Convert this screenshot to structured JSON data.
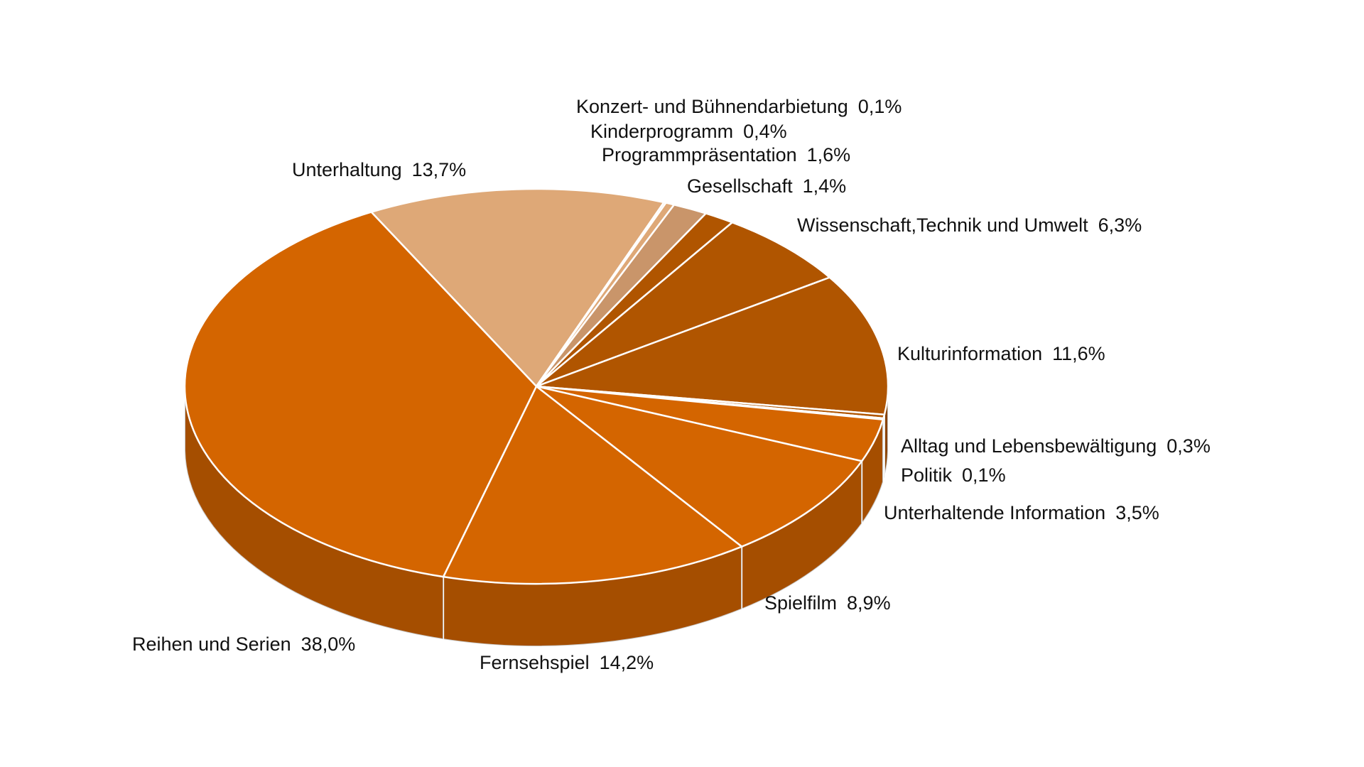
{
  "chart_data": {
    "type": "pie",
    "categories": [
      "Unterhaltung",
      "Konzert- und Bühnendarbietung",
      "Kinderprogramm",
      "Programmpräsentation",
      "Gesellschaft",
      "Wissenschaft,Technik und Umwelt",
      "Kulturinformation",
      "Alltag und Lebensbewältigung",
      "Politik",
      "Unterhaltende Information",
      "Spielfilm",
      "Fernsehspiel",
      "Reihen und Serien"
    ],
    "values": [
      13.7,
      0.1,
      0.4,
      1.6,
      1.4,
      6.3,
      11.6,
      0.3,
      0.1,
      3.5,
      8.9,
      14.2,
      38.0
    ],
    "value_labels": [
      "13,7%",
      "0,1%",
      "0,4%",
      "1,6%",
      "1,4%",
      "6,3%",
      "11,6%",
      "0,3%",
      "0,1%",
      "3,5%",
      "8,9%",
      "14,2%",
      "38,0%"
    ],
    "colors": [
      "#dea877",
      "#dea877",
      "#dea877",
      "#c9956a",
      "#b05500",
      "#b05500",
      "#b05500",
      "#b05500",
      "#b05500",
      "#d46500",
      "#d46500",
      "#d46500",
      "#d46500"
    ]
  }
}
